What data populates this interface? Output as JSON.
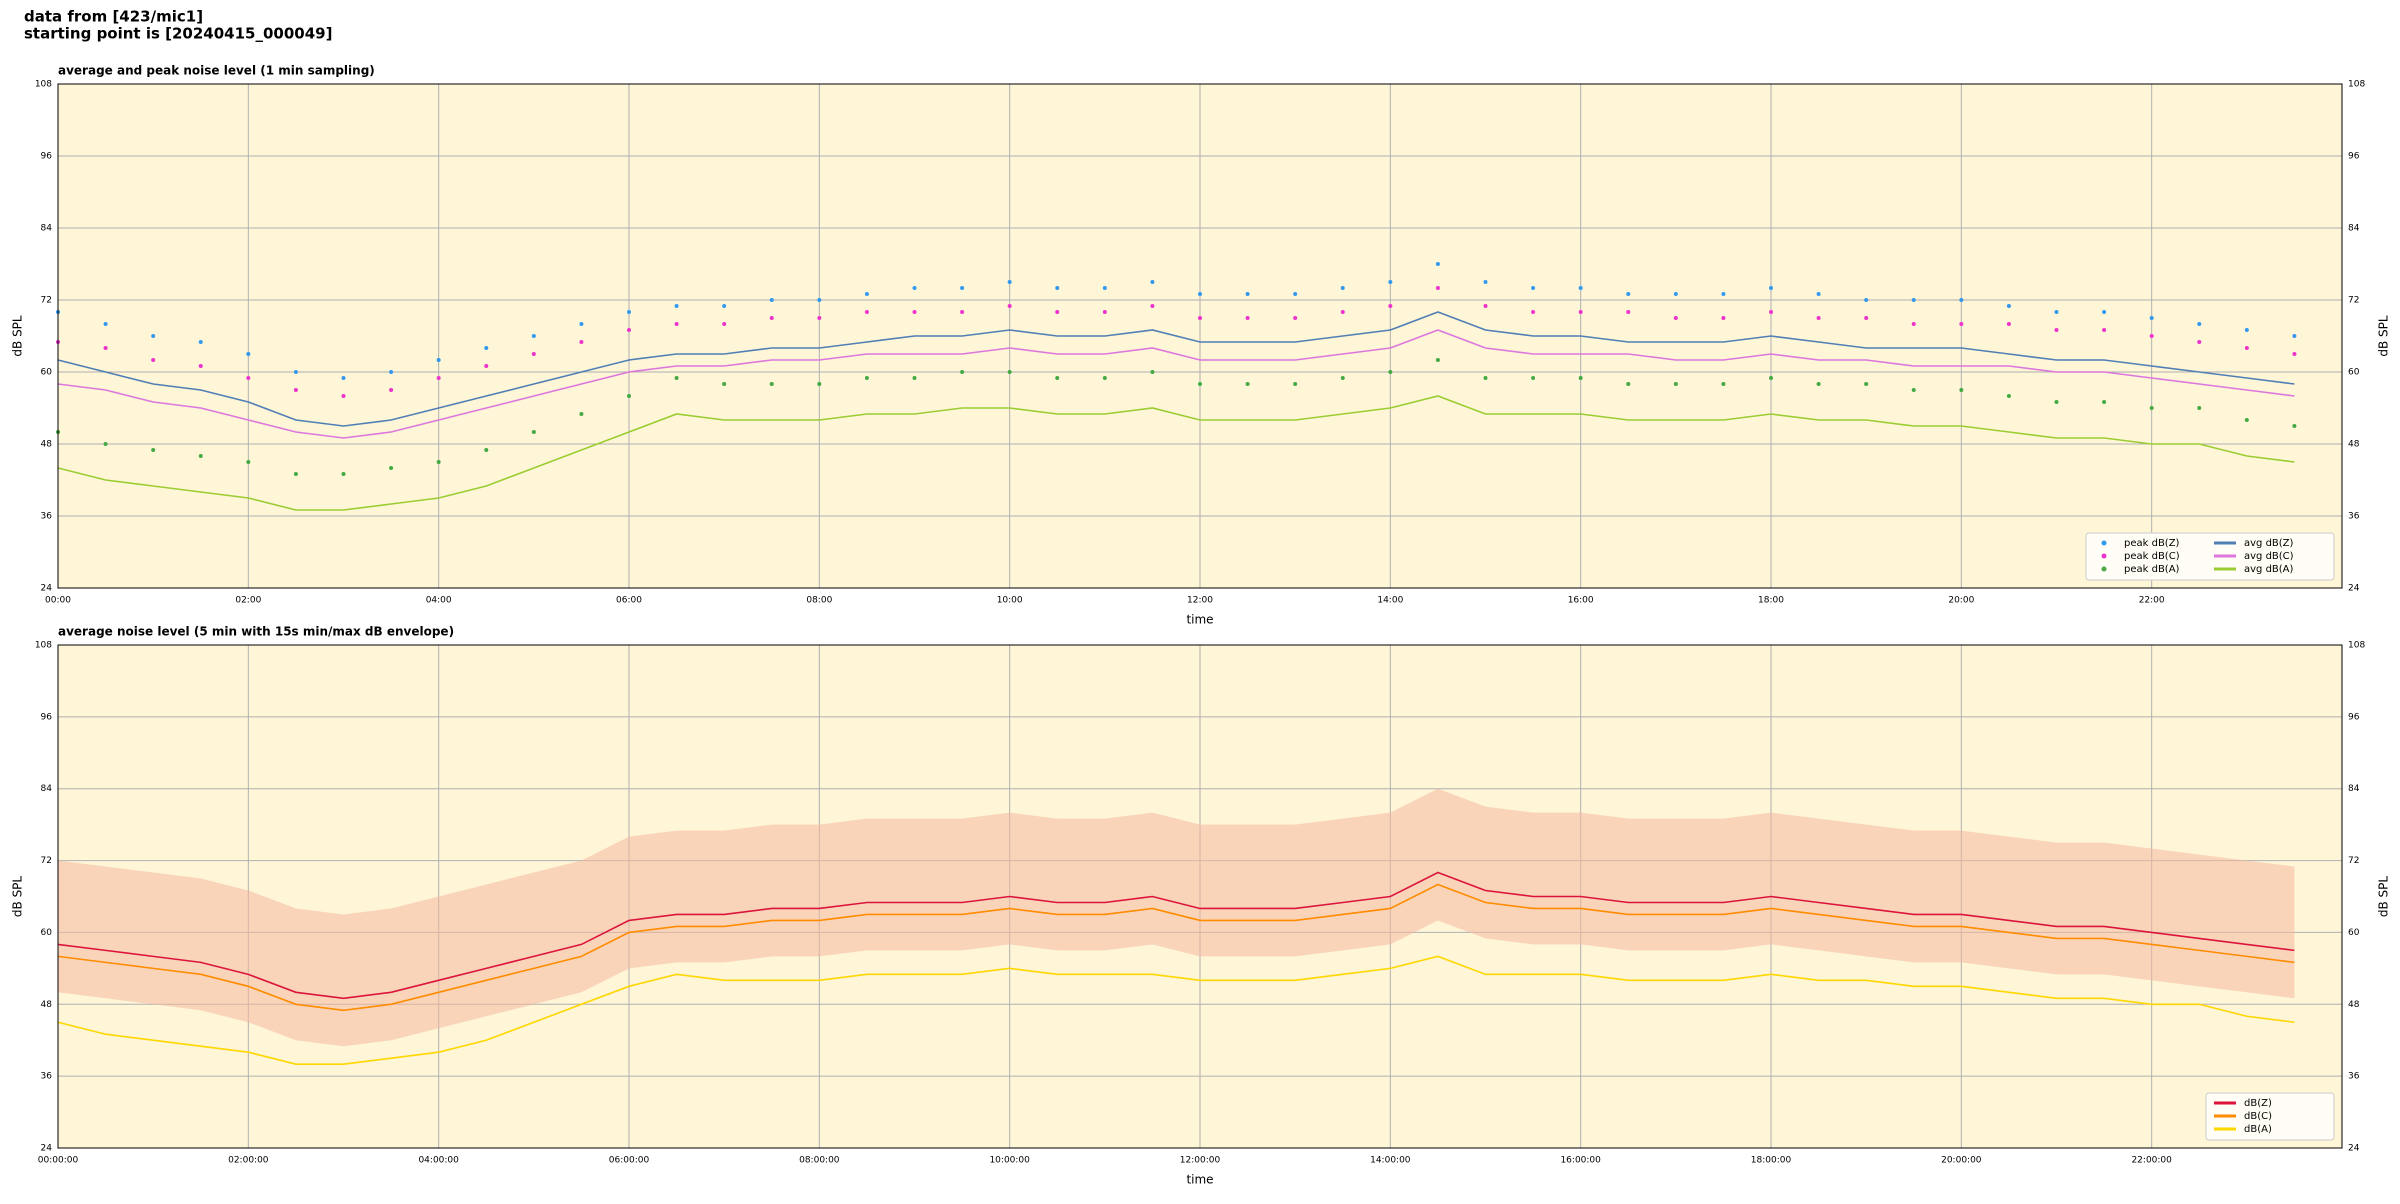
{
  "header": {
    "line1": "data from [423/mic1]",
    "line2": "starting point is [20240415_000049]"
  },
  "chart_data": [
    {
      "type": "line",
      "title": "average and peak noise level (1 min sampling)",
      "xlabel": "time",
      "ylabel": "dB SPL",
      "xlim": [
        "00:00",
        "24:00"
      ],
      "xticks": [
        "00:00",
        "02:00",
        "04:00",
        "06:00",
        "08:00",
        "10:00",
        "12:00",
        "14:00",
        "16:00",
        "18:00",
        "20:00",
        "22:00"
      ],
      "ylim": [
        24,
        108
      ],
      "yticks": [
        24,
        36,
        48,
        60,
        72,
        84,
        96,
        108
      ],
      "grid": true,
      "legend": "lower right",
      "legend_columns": 2,
      "x": [
        "00:00",
        "00:30",
        "01:00",
        "01:30",
        "02:00",
        "02:30",
        "03:00",
        "03:30",
        "04:00",
        "04:30",
        "05:00",
        "05:30",
        "06:00",
        "06:30",
        "07:00",
        "07:30",
        "08:00",
        "08:30",
        "09:00",
        "09:30",
        "10:00",
        "10:30",
        "11:00",
        "11:30",
        "12:00",
        "12:30",
        "13:00",
        "13:30",
        "14:00",
        "14:30",
        "15:00",
        "15:30",
        "16:00",
        "16:30",
        "17:00",
        "17:30",
        "18:00",
        "18:30",
        "19:00",
        "19:30",
        "20:00",
        "20:30",
        "21:00",
        "21:30",
        "22:00",
        "22:30",
        "23:00",
        "23:30"
      ],
      "series": [
        {
          "name": "peak dB(Z)",
          "color": "#3399ee",
          "marker": "dot",
          "values": [
            70,
            68,
            66,
            65,
            63,
            60,
            59,
            60,
            62,
            64,
            66,
            68,
            70,
            71,
            71,
            72,
            72,
            73,
            74,
            74,
            75,
            74,
            74,
            75,
            73,
            73,
            73,
            74,
            75,
            78,
            75,
            74,
            74,
            73,
            73,
            73,
            74,
            73,
            72,
            72,
            72,
            71,
            70,
            70,
            69,
            68,
            67,
            66
          ]
        },
        {
          "name": "peak dB(C)",
          "color": "#ee33cc",
          "marker": "dot",
          "values": [
            65,
            64,
            62,
            61,
            59,
            57,
            56,
            57,
            59,
            61,
            63,
            65,
            67,
            68,
            68,
            69,
            69,
            70,
            70,
            70,
            71,
            70,
            70,
            71,
            69,
            69,
            69,
            70,
            71,
            74,
            71,
            70,
            70,
            70,
            69,
            69,
            70,
            69,
            69,
            68,
            68,
            68,
            67,
            67,
            66,
            65,
            64,
            63
          ]
        },
        {
          "name": "peak dB(A)",
          "color": "#44aa44",
          "marker": "dot",
          "values": [
            50,
            48,
            47,
            46,
            45,
            43,
            43,
            44,
            45,
            47,
            50,
            53,
            56,
            59,
            58,
            58,
            58,
            59,
            59,
            60,
            60,
            59,
            59,
            60,
            58,
            58,
            58,
            59,
            60,
            62,
            59,
            59,
            59,
            58,
            58,
            58,
            59,
            58,
            58,
            57,
            57,
            56,
            55,
            55,
            54,
            54,
            52,
            51
          ]
        },
        {
          "name": "avg dB(Z)",
          "color": "#4f7fb5",
          "marker": "line",
          "values": [
            62,
            60,
            58,
            57,
            55,
            52,
            51,
            52,
            54,
            56,
            58,
            60,
            62,
            63,
            63,
            64,
            64,
            65,
            66,
            66,
            67,
            66,
            66,
            67,
            65,
            65,
            65,
            66,
            67,
            70,
            67,
            66,
            66,
            65,
            65,
            65,
            66,
            65,
            64,
            64,
            64,
            63,
            62,
            62,
            61,
            60,
            59,
            58
          ]
        },
        {
          "name": "avg dB(C)",
          "color": "#dd77dd",
          "marker": "line",
          "values": [
            58,
            57,
            55,
            54,
            52,
            50,
            49,
            50,
            52,
            54,
            56,
            58,
            60,
            61,
            61,
            62,
            62,
            63,
            63,
            63,
            64,
            63,
            63,
            64,
            62,
            62,
            62,
            63,
            64,
            67,
            64,
            63,
            63,
            63,
            62,
            62,
            63,
            62,
            62,
            61,
            61,
            61,
            60,
            60,
            59,
            58,
            57,
            56
          ]
        },
        {
          "name": "avg dB(A)",
          "color": "#9acd32",
          "marker": "line",
          "values": [
            44,
            42,
            41,
            40,
            39,
            37,
            37,
            38,
            39,
            41,
            44,
            47,
            50,
            53,
            52,
            52,
            52,
            53,
            53,
            54,
            54,
            53,
            53,
            54,
            52,
            52,
            52,
            53,
            54,
            56,
            53,
            53,
            53,
            52,
            52,
            52,
            53,
            52,
            52,
            51,
            51,
            50,
            49,
            49,
            48,
            48,
            46,
            45
          ]
        }
      ]
    },
    {
      "type": "line",
      "title": "average noise level (5 min with 15s min/max dB envelope)",
      "xlabel": "time",
      "ylabel": "dB SPL",
      "xlim": [
        "00:00:00",
        "24:00:00"
      ],
      "xticks": [
        "00:00:00",
        "02:00:00",
        "04:00:00",
        "06:00:00",
        "08:00:00",
        "10:00:00",
        "12:00:00",
        "14:00:00",
        "16:00:00",
        "18:00:00",
        "20:00:00",
        "22:00:00"
      ],
      "ylim": [
        24,
        108
      ],
      "yticks": [
        24,
        36,
        48,
        60,
        72,
        84,
        96,
        108
      ],
      "grid": true,
      "legend": "lower right",
      "legend_columns": 1,
      "x": [
        "00:00:00",
        "00:30:00",
        "01:00:00",
        "01:30:00",
        "02:00:00",
        "02:30:00",
        "03:00:00",
        "03:30:00",
        "04:00:00",
        "04:30:00",
        "05:00:00",
        "05:30:00",
        "06:00:00",
        "06:30:00",
        "07:00:00",
        "07:30:00",
        "08:00:00",
        "08:30:00",
        "09:00:00",
        "09:30:00",
        "10:00:00",
        "10:30:00",
        "11:00:00",
        "11:30:00",
        "12:00:00",
        "12:30:00",
        "13:00:00",
        "13:30:00",
        "14:00:00",
        "14:30:00",
        "15:00:00",
        "15:30:00",
        "16:00:00",
        "16:30:00",
        "17:00:00",
        "17:30:00",
        "18:00:00",
        "18:30:00",
        "19:00:00",
        "19:30:00",
        "20:00:00",
        "20:30:00",
        "21:00:00",
        "21:30:00",
        "22:00:00",
        "22:30:00",
        "23:00:00",
        "23:30:00"
      ],
      "band": {
        "color": "#f4b8a0",
        "lower": [
          50,
          49,
          48,
          47,
          45,
          42,
          41,
          42,
          44,
          46,
          48,
          50,
          54,
          55,
          55,
          56,
          56,
          57,
          57,
          57,
          58,
          57,
          57,
          58,
          56,
          56,
          56,
          57,
          58,
          62,
          59,
          58,
          58,
          57,
          57,
          57,
          58,
          57,
          56,
          55,
          55,
          54,
          53,
          53,
          52,
          51,
          50,
          49
        ],
        "upper": [
          72,
          71,
          70,
          69,
          67,
          64,
          63,
          64,
          66,
          68,
          70,
          72,
          76,
          77,
          77,
          78,
          78,
          79,
          79,
          79,
          80,
          79,
          79,
          80,
          78,
          78,
          78,
          79,
          80,
          84,
          81,
          80,
          80,
          79,
          79,
          79,
          80,
          79,
          78,
          77,
          77,
          76,
          75,
          75,
          74,
          73,
          72,
          71
        ]
      },
      "series": [
        {
          "name": "dB(Z)",
          "color": "#dc143c",
          "marker": "line",
          "values": [
            58,
            57,
            56,
            55,
            53,
            50,
            49,
            50,
            52,
            54,
            56,
            58,
            62,
            63,
            63,
            64,
            64,
            65,
            65,
            65,
            66,
            65,
            65,
            66,
            64,
            64,
            64,
            65,
            66,
            70,
            67,
            66,
            66,
            65,
            65,
            65,
            66,
            65,
            64,
            63,
            63,
            62,
            61,
            61,
            60,
            59,
            58,
            57
          ]
        },
        {
          "name": "dB(C)",
          "color": "#ff8c00",
          "marker": "line",
          "values": [
            56,
            55,
            54,
            53,
            51,
            48,
            47,
            48,
            50,
            52,
            54,
            56,
            60,
            61,
            61,
            62,
            62,
            63,
            63,
            63,
            64,
            63,
            63,
            64,
            62,
            62,
            62,
            63,
            64,
            68,
            65,
            64,
            64,
            63,
            63,
            63,
            64,
            63,
            62,
            61,
            61,
            60,
            59,
            59,
            58,
            57,
            56,
            55
          ]
        },
        {
          "name": "dB(A)",
          "color": "#ffd700",
          "marker": "line",
          "values": [
            45,
            43,
            42,
            41,
            40,
            38,
            38,
            39,
            40,
            42,
            45,
            48,
            51,
            53,
            52,
            52,
            52,
            53,
            53,
            53,
            54,
            53,
            53,
            53,
            52,
            52,
            52,
            53,
            54,
            56,
            53,
            53,
            53,
            52,
            52,
            52,
            53,
            52,
            52,
            51,
            51,
            50,
            49,
            49,
            48,
            48,
            46,
            45
          ]
        }
      ]
    }
  ]
}
